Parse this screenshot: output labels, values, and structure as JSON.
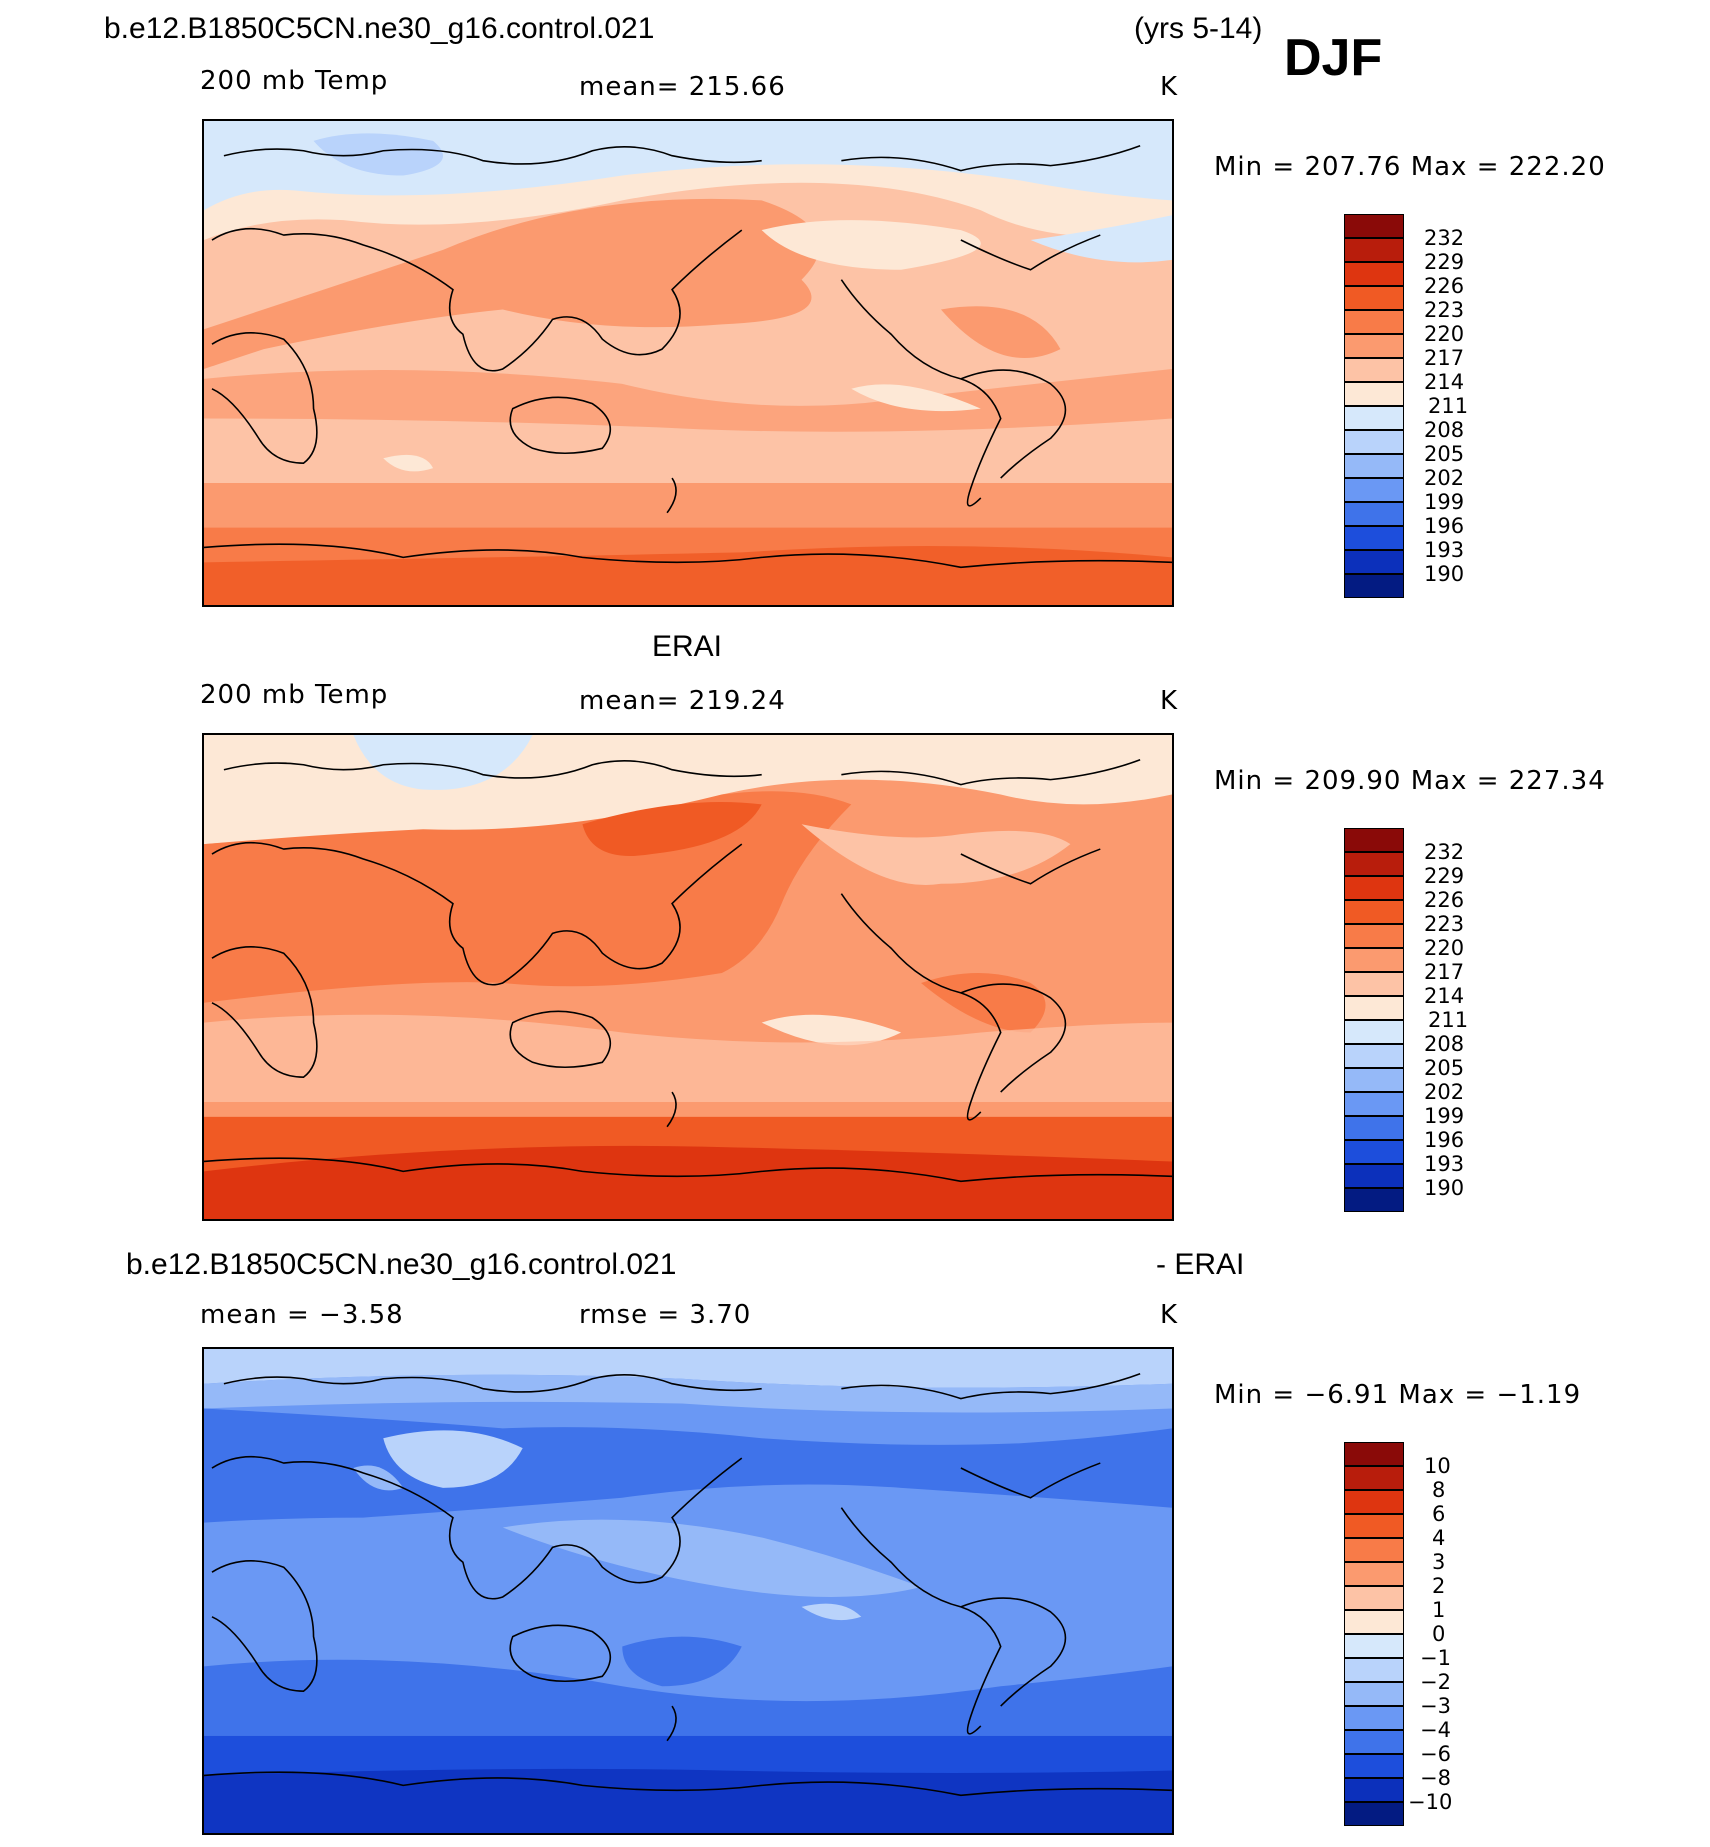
{
  "header": {
    "case_name": "b.e12.B1850C5CN.ne30_g16.control.021",
    "years": "(yrs 5-14)",
    "season": "DJF"
  },
  "panels": [
    {
      "id": "model",
      "variable": "200 mb Temp",
      "stat": "mean=  215.66",
      "units": "K",
      "minmax": "Min  =  207.76  Max  =  222.20",
      "colorbar_labels": [
        "232",
        "229",
        "226",
        "223",
        "220",
        "217",
        "214",
        "211",
        "208",
        "205",
        "202",
        "199",
        "196",
        "193",
        "190"
      ],
      "colorbar_colors": [
        "#8a0a08",
        "#b81d0c",
        "#de3510",
        "#f05a24",
        "#f87b48",
        "#fb9a6f",
        "#fdc3a6",
        "#fde8d6",
        "#d6e8fb",
        "#b9d3fb",
        "#95b9f8",
        "#6a98f4",
        "#3f73ea",
        "#1d4edc",
        "#0c30bb",
        "#031b82"
      ]
    },
    {
      "id": "obs",
      "title": "ERAI",
      "variable": "200 mb Temp",
      "stat": "mean=  219.24",
      "units": "K",
      "minmax": "Min  =  209.90  Max  =  227.34",
      "colorbar_labels": [
        "232",
        "229",
        "226",
        "223",
        "220",
        "217",
        "214",
        "211",
        "208",
        "205",
        "202",
        "199",
        "196",
        "193",
        "190"
      ],
      "colorbar_colors": [
        "#8a0a08",
        "#b81d0c",
        "#de3510",
        "#f05a24",
        "#f87b48",
        "#fb9a6f",
        "#fdc3a6",
        "#fde8d6",
        "#d6e8fb",
        "#b9d3fb",
        "#95b9f8",
        "#6a98f4",
        "#3f73ea",
        "#1d4edc",
        "#0c30bb",
        "#031b82"
      ]
    },
    {
      "id": "diff",
      "title_left": "b.e12.B1850C5CN.ne30_g16.control.021",
      "title_right": "- ERAI",
      "stat_left": "mean  =    −3.58",
      "stat": "rmse  =     3.70",
      "units": "K",
      "minmax": "Min  =    −6.91  Max  =    −1.19",
      "colorbar_labels": [
        "10",
        "8",
        "6",
        "4",
        "3",
        "2",
        "1",
        "0",
        "−1",
        "−2",
        "−3",
        "−4",
        "−6",
        "−8",
        "−10"
      ],
      "colorbar_colors": [
        "#8a0a08",
        "#b81d0c",
        "#de3510",
        "#f05a24",
        "#f87b48",
        "#fb9a6f",
        "#fdc3a6",
        "#fde8d6",
        "#d6e8fb",
        "#b9d3fb",
        "#95b9f8",
        "#6a98f4",
        "#3f73ea",
        "#1d4edc",
        "#0c30bb",
        "#031b82"
      ]
    }
  ]
}
